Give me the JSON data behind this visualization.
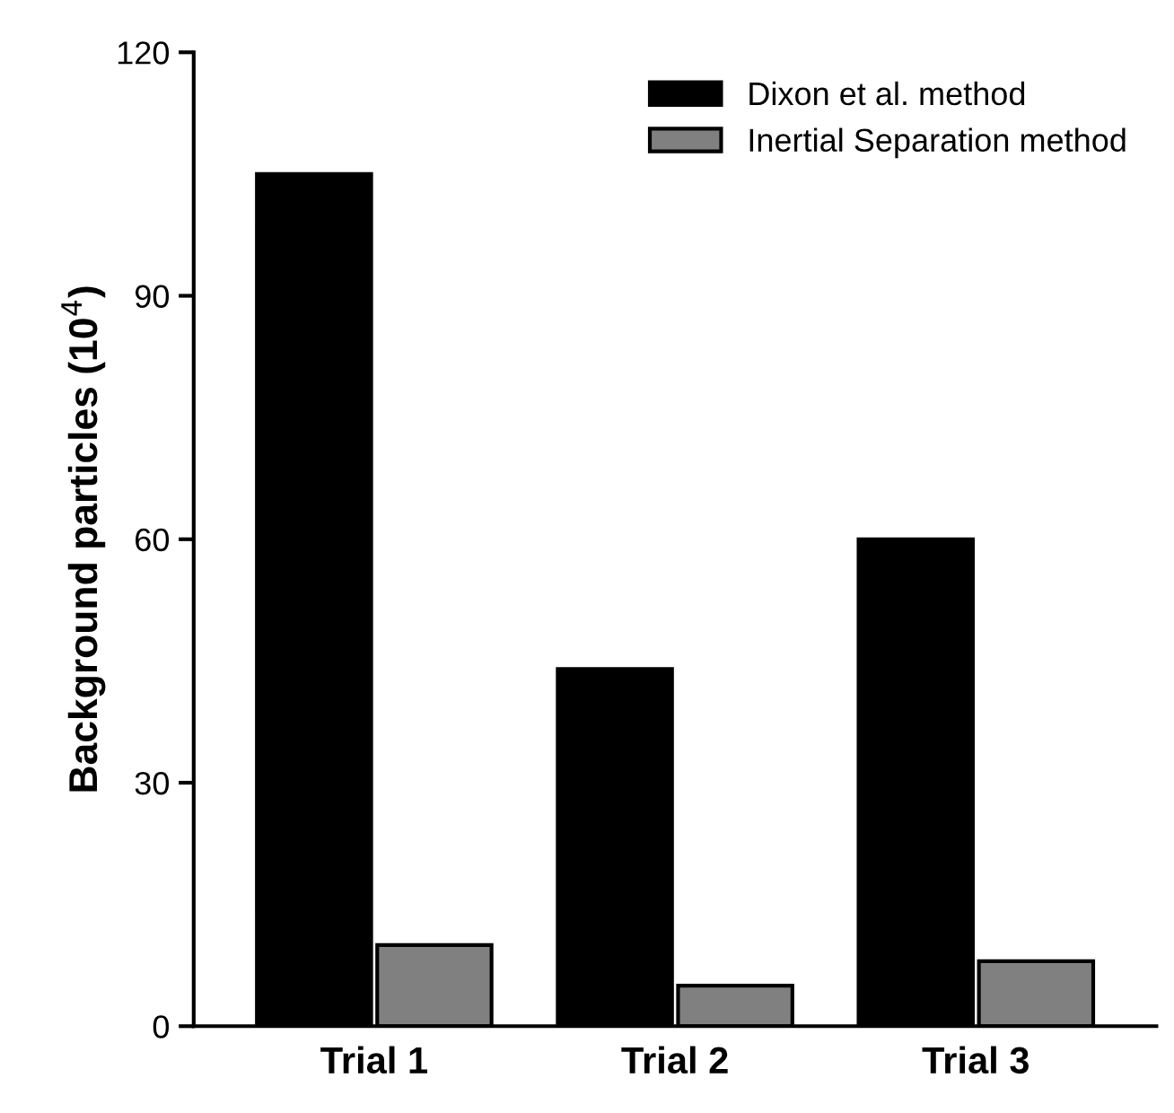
{
  "chart_data": {
    "type": "bar",
    "ylabel": "Background particles (10$^{4}$)",
    "categories": [
      "Trial 1",
      "Trial 2",
      "Trial 3"
    ],
    "series": [
      {
        "name": "Dixon et al. method",
        "color": "#000000",
        "values": [
          105,
          44,
          60
        ]
      },
      {
        "name": "Inertial Separation method",
        "color": "#808080",
        "values": [
          10,
          5,
          8
        ]
      }
    ],
    "ylim": [
      0,
      120
    ],
    "yticks": [
      0,
      30,
      60,
      90,
      120
    ],
    "legend": "top right",
    "grid": false
  }
}
